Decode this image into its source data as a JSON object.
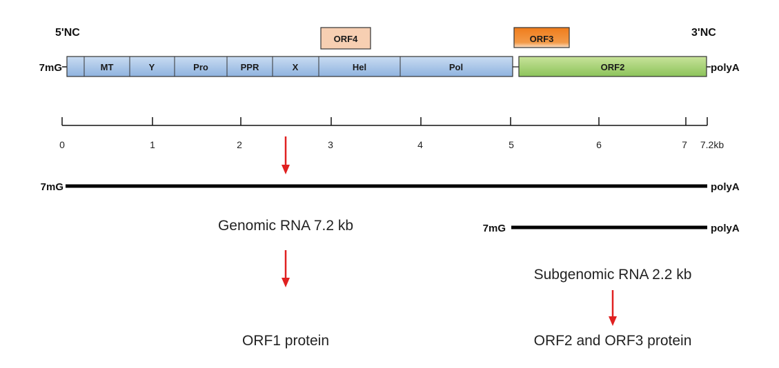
{
  "genome": {
    "label_5nc": "5'NC",
    "label_3nc": "3'NC",
    "cap": "7mG",
    "tail": "polyA",
    "domains": [
      "MT",
      "Y",
      "Pro",
      "PPR",
      "X",
      "Hel",
      "Pol"
    ],
    "orf2": "ORF2",
    "orf3": "ORF3",
    "orf4": "ORF4"
  },
  "scale": {
    "ticks": [
      "0",
      "1",
      "2",
      "3",
      "4",
      "5",
      "6",
      "7",
      "7.2kb"
    ]
  },
  "genomic_rna": {
    "cap": "7mG",
    "tail": "polyA",
    "label": "Genomic RNA 7.2 kb",
    "product": "ORF1 protein"
  },
  "subgenomic_rna": {
    "cap": "7mG",
    "tail": "polyA",
    "label": "Subgenomic RNA 2.2 kb",
    "product": "ORF2 and ORF3 protein"
  },
  "colors": {
    "orf1_fill_top": "#c9dcf2",
    "orf1_fill_bottom": "#8fb3df",
    "orf2_fill_top": "#c8e39a",
    "orf2_fill_bottom": "#8cc35a",
    "orf3_fill": "#f08a2c",
    "orf4_fill": "#f7cfb2",
    "arrow": "#e02020"
  }
}
